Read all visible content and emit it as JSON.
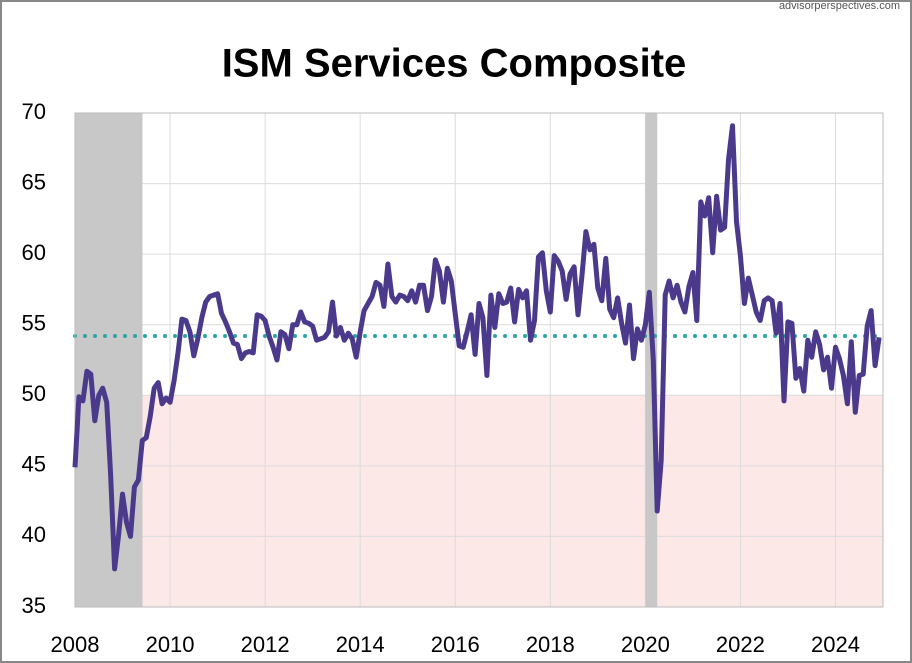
{
  "chart_data": {
    "type": "line",
    "title": "ISM Services Composite",
    "source": "advisorperspectives.com",
    "x": [
      2008,
      2008.083,
      2008.167,
      2008.25,
      2008.333,
      2008.417,
      2008.5,
      2008.583,
      2008.667,
      2008.75,
      2008.833,
      2008.917,
      2009,
      2009.083,
      2009.167,
      2009.25,
      2009.333,
      2009.417,
      2009.5,
      2009.583,
      2009.667,
      2009.75,
      2009.833,
      2009.917,
      2010,
      2010.083,
      2010.167,
      2010.25,
      2010.333,
      2010.417,
      2010.5,
      2010.583,
      2010.667,
      2010.75,
      2010.833,
      2010.917,
      2011,
      2011.083,
      2011.167,
      2011.25,
      2011.333,
      2011.417,
      2011.5,
      2011.583,
      2011.667,
      2011.75,
      2011.833,
      2011.917,
      2012,
      2012.083,
      2012.167,
      2012.25,
      2012.333,
      2012.417,
      2012.5,
      2012.583,
      2012.667,
      2012.75,
      2012.833,
      2012.917,
      2013,
      2013.083,
      2013.167,
      2013.25,
      2013.333,
      2013.417,
      2013.5,
      2013.583,
      2013.667,
      2013.75,
      2013.833,
      2013.917,
      2014,
      2014.083,
      2014.167,
      2014.25,
      2014.333,
      2014.417,
      2014.5,
      2014.583,
      2014.667,
      2014.75,
      2014.833,
      2014.917,
      2015,
      2015.083,
      2015.167,
      2015.25,
      2015.333,
      2015.417,
      2015.5,
      2015.583,
      2015.667,
      2015.75,
      2015.833,
      2015.917,
      2016,
      2016.083,
      2016.167,
      2016.25,
      2016.333,
      2016.417,
      2016.5,
      2016.583,
      2016.667,
      2016.75,
      2016.833,
      2016.917,
      2017,
      2017.083,
      2017.167,
      2017.25,
      2017.333,
      2017.417,
      2017.5,
      2017.583,
      2017.667,
      2017.75,
      2017.833,
      2017.917,
      2018,
      2018.083,
      2018.167,
      2018.25,
      2018.333,
      2018.417,
      2018.5,
      2018.583,
      2018.667,
      2018.75,
      2018.833,
      2018.917,
      2019,
      2019.083,
      2019.167,
      2019.25,
      2019.333,
      2019.417,
      2019.5,
      2019.583,
      2019.667,
      2019.75,
      2019.833,
      2019.917,
      2020,
      2020.083,
      2020.167,
      2020.25,
      2020.333,
      2020.417,
      2020.5,
      2020.583,
      2020.667,
      2020.75,
      2020.833,
      2020.917,
      2021,
      2021.083,
      2021.167,
      2021.25,
      2021.333,
      2021.417,
      2021.5,
      2021.583,
      2021.667,
      2021.75,
      2021.833,
      2021.917,
      2022,
      2022.083,
      2022.167,
      2022.25,
      2022.333,
      2022.417,
      2022.5,
      2022.583,
      2022.667,
      2022.75,
      2022.833,
      2022.917,
      2023,
      2023.083,
      2023.167,
      2023.25,
      2023.333,
      2023.417,
      2023.5,
      2023.583,
      2023.667,
      2023.75,
      2023.833,
      2023.917,
      2024,
      2024.083,
      2024.167,
      2024.25,
      2024.333,
      2024.417,
      2024.5,
      2024.583,
      2024.667,
      2024.75,
      2024.833,
      2024.917
    ],
    "series": [
      {
        "name": "ISM Services Composite",
        "color": "#4b3a8c",
        "values": [
          44.9,
          49.9,
          49.6,
          51.7,
          51.5,
          48.2,
          50.0,
          50.5,
          49.5,
          44.4,
          37.7,
          40.1,
          43.0,
          41.0,
          40.0,
          43.5,
          44.0,
          46.8,
          47.0,
          48.5,
          50.5,
          50.9,
          49.4,
          49.8,
          49.5,
          51.0,
          53.0,
          55.4,
          55.3,
          54.5,
          52.8,
          54.0,
          55.5,
          56.6,
          57.0,
          57.1,
          57.2,
          55.8,
          55.2,
          54.5,
          53.7,
          53.6,
          52.6,
          53.0,
          53.1,
          53.0,
          55.7,
          55.6,
          55.3,
          54.2,
          53.4,
          52.5,
          54.5,
          54.3,
          53.3,
          55.0,
          55.0,
          55.9,
          55.2,
          55.1,
          54.9,
          53.9,
          54.0,
          54.1,
          54.5,
          56.6,
          54.2,
          54.8,
          53.9,
          54.4,
          54.0,
          52.7,
          54.5,
          56.0,
          56.5,
          57.0,
          58.0,
          57.8,
          56.3,
          59.3,
          57.0,
          56.6,
          57.1,
          57.0,
          56.7,
          57.4,
          56.6,
          57.8,
          57.8,
          56.0,
          57.0,
          59.6,
          58.8,
          56.6,
          59.0,
          58.1,
          55.8,
          53.5,
          53.4,
          54.5,
          55.7,
          52.9,
          56.5,
          55.5,
          51.4,
          57.1,
          54.8,
          57.2,
          56.5,
          56.6,
          57.6,
          55.2,
          57.5,
          56.9,
          57.4,
          53.9,
          55.3,
          59.8,
          60.1,
          57.4,
          55.9,
          59.9,
          59.5,
          58.8,
          56.8,
          58.6,
          59.1,
          55.7,
          58.5,
          61.6,
          60.3,
          60.7,
          57.6,
          56.7,
          59.7,
          56.1,
          55.5,
          56.9,
          55.1,
          53.7,
          56.4,
          52.6,
          54.7,
          53.9,
          55.0,
          57.3,
          52.5,
          41.8,
          45.4,
          57.1,
          58.1,
          56.9,
          57.8,
          56.6,
          55.9,
          57.7,
          58.7,
          55.3,
          63.7,
          62.7,
          64.0,
          60.1,
          64.1,
          61.7,
          61.9,
          66.7,
          69.1,
          62.3,
          59.9,
          56.5,
          58.3,
          57.1,
          55.9,
          55.3,
          56.7,
          56.9,
          56.7,
          54.4,
          56.5,
          49.6,
          55.2,
          55.1,
          51.2,
          51.9,
          50.3,
          53.9,
          52.7,
          54.5,
          53.6,
          51.8,
          52.7,
          50.5,
          53.4,
          52.6,
          51.4,
          49.4,
          53.8,
          48.8,
          51.4,
          51.5,
          54.9,
          56.0,
          52.1,
          54.1
        ]
      }
    ],
    "average": 54.2,
    "average_color": "#2aa5a5",
    "contraction_threshold": 50,
    "contraction_color": "#fde8e8",
    "recessions": [
      [
        2008,
        2009.42
      ],
      [
        2020.0,
        2020.25
      ]
    ],
    "recession_color": "#c8c8c8",
    "xlim": [
      2008,
      2025
    ],
    "xticks": [
      2008,
      2010,
      2012,
      2014,
      2016,
      2018,
      2020,
      2022,
      2024
    ],
    "ylim": [
      35,
      70
    ],
    "yticks": [
      35,
      40,
      45,
      50,
      55,
      60,
      65,
      70
    ],
    "grid": true
  }
}
